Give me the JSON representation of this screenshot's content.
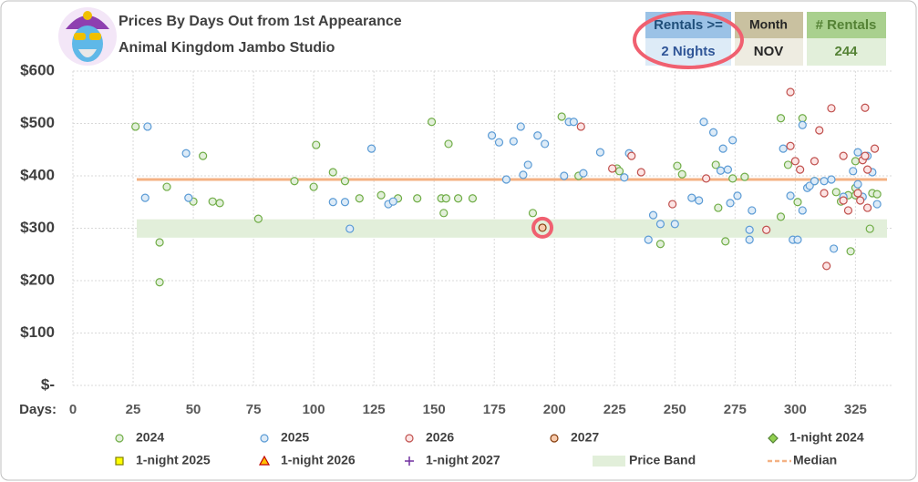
{
  "header": {
    "title": "Prices By Days Out from 1st Appearance",
    "subtitle": "Animal Kingdom Jambo Studio"
  },
  "filters": [
    {
      "label": "Rentals >=",
      "value": "2 Nights"
    },
    {
      "label": "Month",
      "value": "NOV"
    },
    {
      "label": "# Rentals",
      "value": "244"
    }
  ],
  "chart_data": {
    "type": "scatter",
    "x_label": "Days:",
    "xlim": [
      0,
      340
    ],
    "xticks": [
      0,
      25,
      50,
      75,
      100,
      125,
      150,
      175,
      200,
      225,
      250,
      275,
      300,
      325
    ],
    "ylim": [
      0,
      600
    ],
    "yticks": [
      {
        "value": 0,
        "label": "$-"
      },
      {
        "value": 100,
        "label": "$100"
      },
      {
        "value": 200,
        "label": "$200"
      },
      {
        "value": 300,
        "label": "$300"
      },
      {
        "value": 400,
        "label": "$400"
      },
      {
        "value": 500,
        "label": "$500"
      },
      {
        "value": 600,
        "label": "$600"
      }
    ],
    "grid": true,
    "price_band": {
      "name": "Price Band",
      "range": [
        282,
        317
      ],
      "color": "#e2efda"
    },
    "median": {
      "name": "Median",
      "value": 393,
      "color": "#f4b183"
    },
    "series": [
      {
        "name": "2024",
        "marker": "circle",
        "color": "#70ad47",
        "fill": "#e2efda",
        "x": [
          26,
          36,
          36,
          39,
          54,
          50,
          58,
          61,
          77,
          92,
          100,
          101,
          108,
          113,
          119,
          128,
          135,
          143,
          149,
          153,
          154,
          155,
          156,
          160,
          166,
          191,
          203,
          210,
          226,
          227,
          244,
          251,
          253,
          267,
          268,
          271,
          274,
          279,
          294,
          294,
          297,
          303,
          301,
          308,
          317,
          319,
          322,
          323,
          325,
          325,
          331,
          332,
          334,
          325
        ],
        "values": [
          494,
          273,
          197,
          379,
          438,
          351,
          351,
          348,
          318,
          390,
          379,
          459,
          407,
          390,
          357,
          363,
          357,
          357,
          503,
          357,
          329,
          357,
          461,
          357,
          357,
          329,
          513,
          400,
          414,
          409,
          270,
          419,
          403,
          421,
          339,
          275,
          395,
          398,
          322,
          510,
          421,
          510,
          350,
          390,
          369,
          351,
          363,
          256,
          428,
          363,
          299,
          367,
          365,
          377
        ]
      },
      {
        "name": "2025",
        "marker": "circle",
        "color": "#5b9bd5",
        "fill": "#ddebf7",
        "x": [
          31,
          30,
          47,
          48,
          108,
          113,
          115,
          124,
          131,
          133,
          174,
          177,
          180,
          183,
          186,
          187,
          189,
          193,
          196,
          204,
          206,
          208,
          212,
          219,
          229,
          231,
          239,
          241,
          244,
          250,
          257,
          260,
          262,
          266,
          269,
          270,
          272,
          273,
          274,
          276,
          281,
          281,
          282,
          295,
          298,
          299,
          301,
          303,
          303,
          305,
          306,
          308,
          312,
          315,
          316,
          320,
          324,
          326,
          328,
          330,
          332,
          334,
          326
        ],
        "values": [
          494,
          358,
          443,
          358,
          350,
          350,
          299,
          452,
          346,
          351,
          477,
          464,
          393,
          466,
          494,
          402,
          421,
          477,
          461,
          400,
          503,
          503,
          405,
          445,
          397,
          443,
          278,
          325,
          308,
          308,
          358,
          353,
          503,
          483,
          410,
          452,
          412,
          348,
          468,
          362,
          297,
          278,
          334,
          452,
          362,
          278,
          278,
          334,
          497,
          377,
          381,
          390,
          390,
          393,
          261,
          360,
          409,
          384,
          360,
          438,
          407,
          346,
          445
        ]
      },
      {
        "name": "2026",
        "marker": "circle",
        "color": "#c0504d",
        "fill": "#fce4e4",
        "x": [
          211,
          224,
          232,
          236,
          249,
          263,
          288,
          298,
          298,
          300,
          302,
          308,
          310,
          312,
          315,
          313,
          320,
          320,
          322,
          326,
          327,
          328,
          329,
          330,
          330,
          333,
          329
        ],
        "values": [
          494,
          414,
          438,
          407,
          346,
          395,
          297,
          560,
          457,
          428,
          412,
          428,
          487,
          367,
          529,
          228,
          438,
          353,
          334,
          367,
          353,
          430,
          530,
          412,
          339,
          452,
          438
        ]
      },
      {
        "name": "2027",
        "marker": "circle",
        "color": "#843c0c",
        "fill": "#f8cbad",
        "ring": "#f06070",
        "x": [
          195
        ],
        "values": [
          301
        ]
      },
      {
        "name": "1-night 2024",
        "marker": "diamond",
        "color": "#548235",
        "fill": "#92d050",
        "x": [],
        "values": []
      },
      {
        "name": "1-night 2025",
        "marker": "square",
        "color": "#7f7f00",
        "fill": "#ffff00",
        "x": [],
        "values": []
      },
      {
        "name": "1-night 2026",
        "marker": "triangle",
        "color": "#c00000",
        "fill": "#ffc000",
        "x": [],
        "values": []
      },
      {
        "name": "1-night 2027",
        "marker": "plus",
        "color": "#7030a0",
        "fill": "none",
        "x": [],
        "values": []
      }
    ]
  }
}
